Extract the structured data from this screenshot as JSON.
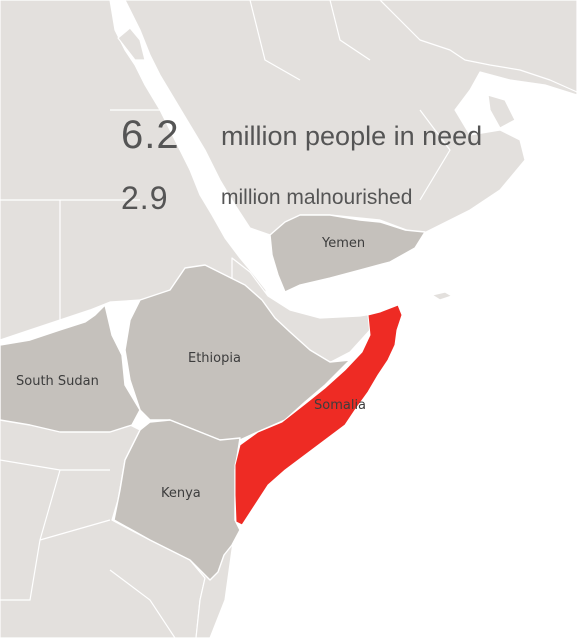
{
  "stats": [
    {
      "value": "6.2",
      "label": "million people in need"
    },
    {
      "value": "2.9",
      "label": "million malnourished"
    }
  ],
  "countries": {
    "yemen": "Yemen",
    "ethiopia": "Ethiopia",
    "south_sudan": "South Sudan",
    "somalia": "Somalia",
    "kenya": "Kenya"
  },
  "colors": {
    "background_land": "#e3e0dd",
    "highlighted_land": "#c5c1bc",
    "focus_country": "#ee2b24",
    "water": "#ffffff",
    "text": "#555555"
  }
}
